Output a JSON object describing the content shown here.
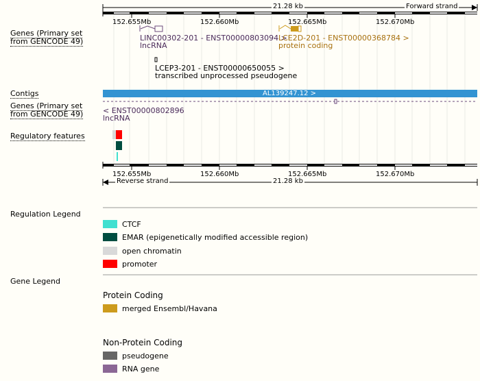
{
  "scale": {
    "span": "21.28 kb",
    "forward_strand": "Forward strand",
    "reverse_strand": "Reverse strand",
    "ticks_top": [
      "152.655Mb",
      "152.660Mb",
      "152.665Mb",
      "152.670Mb"
    ],
    "ticks_bottom": [
      "152.655Mb",
      "152.660Mb",
      "152.665Mb",
      "152.670Mb"
    ]
  },
  "tracks": {
    "genes_forward": "Genes (Primary set from GENCODE 49)",
    "contigs": "Contigs",
    "genes_reverse": "Genes (Primary set from GENCODE 49)",
    "regulatory": "Regulatory features"
  },
  "genes": {
    "linc": {
      "name": "LINC00302-201 - ENST00000803094 >",
      "biotype": "lncRNA"
    },
    "lce2d": {
      "name": "LCE2D-201 - ENST00000368784 >",
      "biotype": "protein coding"
    },
    "lcep3": {
      "name": "LCEP3-201 - ENST00000650055 >",
      "biotype": "transcribed unprocessed pseudogene"
    },
    "reverse": {
      "name": "< ENST00000802896",
      "biotype": "lncRNA"
    }
  },
  "contig": {
    "label": "AL139247.12 >"
  },
  "regulation_legend": {
    "title": "Regulation Legend",
    "items": [
      {
        "label": "CTCF",
        "color": "#40e0d0"
      },
      {
        "label": "EMAR (epigenetically modified accessible region)",
        "color": "#004d40"
      },
      {
        "label": "open chromatin",
        "color": "#d9d9d9"
      },
      {
        "label": "promoter",
        "color": "#ff0000"
      }
    ]
  },
  "gene_legend": {
    "title": "Gene Legend",
    "protein_coding": {
      "heading": "Protein Coding",
      "items": [
        {
          "label": "merged Ensembl/Havana",
          "color": "#cd9b1d"
        }
      ]
    },
    "non_protein_coding": {
      "heading": "Non-Protein Coding",
      "items": [
        {
          "label": "pseudogene",
          "color": "#666666"
        },
        {
          "label": "RNA gene",
          "color": "#8b6795"
        }
      ]
    }
  },
  "colors": {
    "contig_bar": "#3394d2",
    "gene_gold": "#cd9b1d",
    "gene_purple": "#6b4a7b",
    "grid": "#e8e8e8"
  }
}
